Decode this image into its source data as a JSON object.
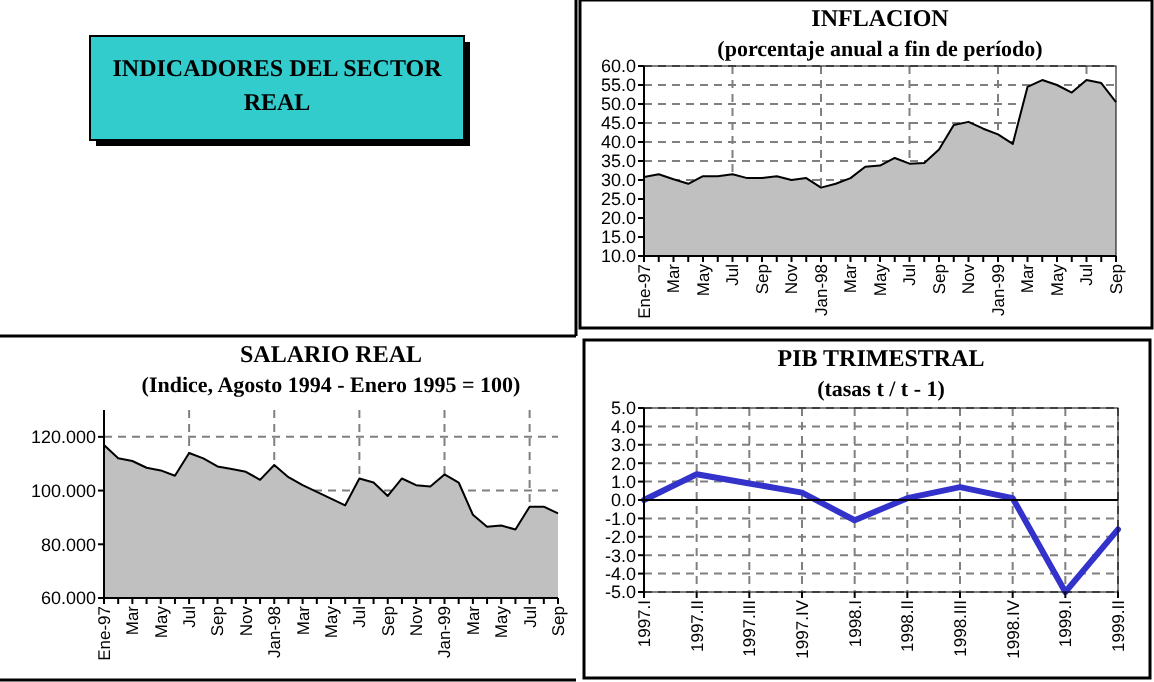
{
  "chart_data": [
    {
      "type": "other",
      "title": "INDICADORES DEL SECTOR REAL"
    },
    {
      "type": "area",
      "title": "INFLACION",
      "subtitle": "(porcentaje anual a fin de período)",
      "categories": [
        "Ene-97",
        null,
        "Mar",
        null,
        "May",
        null,
        "Jul",
        null,
        "Sep",
        null,
        "Nov",
        null,
        "Jan-98",
        null,
        "Mar",
        null,
        "May",
        null,
        "Jul",
        null,
        "Sep",
        null,
        "Nov",
        null,
        "Jan-99",
        null,
        "Mar",
        null,
        "May",
        null,
        "Jul",
        null,
        "Sep"
      ],
      "series": [
        {
          "color": "#c0c0c0",
          "values": [
            30.8,
            31.5,
            30.2,
            29.0,
            31.0,
            31.0,
            31.5,
            30.5,
            30.5,
            31.0,
            30.0,
            30.5,
            28.0,
            29.0,
            30.5,
            33.5,
            33.8,
            35.8,
            34.3,
            34.5,
            38.0,
            44.5,
            45.3,
            43.5,
            42.0,
            39.5,
            54.5,
            56.3,
            55.0,
            53.0,
            56.3,
            55.5,
            50.5
          ]
        }
      ],
      "ylim": [
        10,
        60
      ],
      "yticks": [
        {
          "value": 10,
          "label": "10.0"
        },
        {
          "value": 15,
          "label": "15.0"
        },
        {
          "value": 20,
          "label": "20.0"
        },
        {
          "value": 25,
          "label": "25.0"
        },
        {
          "value": 30,
          "label": "30.0"
        },
        {
          "value": 35,
          "label": "35.0"
        },
        {
          "value": 40,
          "label": "40.0"
        },
        {
          "value": 45,
          "label": "45.0"
        },
        {
          "value": 50,
          "label": "50.0"
        },
        {
          "value": 55,
          "label": "55.0"
        },
        {
          "value": 60,
          "label": "60.0"
        }
      ],
      "grid": true
    },
    {
      "type": "area",
      "title": "SALARIO REAL",
      "subtitle": "(Indice,  Agosto 1994 - Enero 1995 = 100)",
      "categories": [
        "Ene-97",
        null,
        "Mar",
        null,
        "May",
        null,
        "Jul",
        null,
        "Sep",
        null,
        "Nov",
        null,
        "Jan-98",
        null,
        "Mar",
        null,
        "May",
        null,
        "Jul",
        null,
        "Sep",
        null,
        "Nov",
        null,
        "Jan-99",
        null,
        "Mar",
        null,
        "May",
        null,
        "Jul",
        null,
        "Sep"
      ],
      "series": [
        {
          "color": "#c0c0c0",
          "values": [
            117,
            112,
            111,
            108.5,
            107.5,
            105.5,
            114,
            112,
            109,
            108,
            107,
            104,
            109.5,
            105,
            102,
            99.5,
            97,
            94.5,
            104.5,
            103,
            98,
            104.5,
            102,
            101.5,
            106,
            103,
            91,
            86.5,
            87,
            85.5,
            94,
            94,
            91.5
          ]
        }
      ],
      "ylim": [
        60,
        130
      ],
      "yticks": [
        {
          "value": 60,
          "label": "60.000"
        },
        {
          "value": 80,
          "label": "80.000"
        },
        {
          "value": 100,
          "label": "100.000"
        },
        {
          "value": 120,
          "label": "120.000"
        }
      ],
      "grid": true
    },
    {
      "type": "line",
      "title": "PIB TRIMESTRAL",
      "subtitle": "(tasas t / t - 1)",
      "categories": [
        "1997.I",
        "1997.II",
        "1997.III",
        "1997.IV",
        "1998.I",
        "1998.II",
        "1998.III",
        "1998.IV",
        "1999.I",
        "1999.II"
      ],
      "series": [
        {
          "color": "#3333cc",
          "values": [
            0.0,
            1.4,
            0.9,
            0.4,
            -1.1,
            0.1,
            0.7,
            0.1,
            -5.0,
            -1.6
          ]
        }
      ],
      "ylim": [
        -5,
        5
      ],
      "yticks": [
        {
          "value": -5,
          "label": "-5.0"
        },
        {
          "value": -4,
          "label": "-4.0"
        },
        {
          "value": -3,
          "label": "-3.0"
        },
        {
          "value": -2,
          "label": "-2.0"
        },
        {
          "value": -1,
          "label": "-1.0"
        },
        {
          "value": 0,
          "label": "0.0"
        },
        {
          "value": 1,
          "label": "1.0"
        },
        {
          "value": 2,
          "label": "2.0"
        },
        {
          "value": 3,
          "label": "3.0"
        },
        {
          "value": 4,
          "label": "4.0"
        },
        {
          "value": 5,
          "label": "5.0"
        }
      ],
      "grid": true
    }
  ]
}
